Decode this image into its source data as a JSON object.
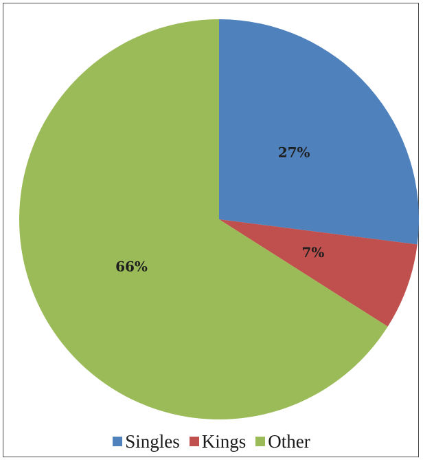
{
  "chart_data": {
    "type": "pie",
    "title": "",
    "slices": [
      {
        "name": "Singles",
        "value": 27,
        "label": "27%",
        "color": "#4f81bd"
      },
      {
        "name": "Kings",
        "value": 7,
        "label": "7%",
        "color": "#c0504d"
      },
      {
        "name": "Other",
        "value": 66,
        "label": "66%",
        "color": "#9bbb59"
      }
    ],
    "start_angle_deg": 0,
    "direction": "clockwise",
    "legend": {
      "placement": "bottom",
      "items": [
        {
          "label": "Singles",
          "color": "#4f81bd"
        },
        {
          "label": "Kings",
          "color": "#c0504d"
        },
        {
          "label": "Other",
          "color": "#9bbb59"
        }
      ]
    }
  }
}
